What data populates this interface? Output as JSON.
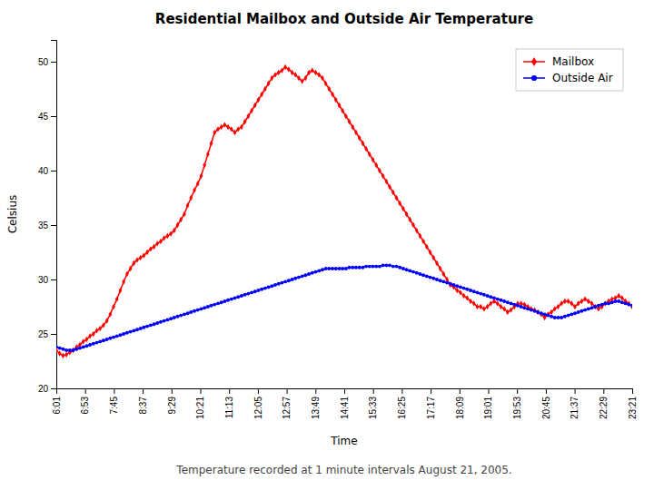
{
  "chart_data": {
    "type": "line",
    "title": "Residential Mailbox and Outside Air Temperature",
    "subtitle": "Temperature recorded at 1 minute intervals August 21, 2005.",
    "xlabel": "Time",
    "ylabel": "Celsius",
    "x": [
      0,
      1,
      2,
      3,
      4,
      5,
      6,
      7,
      8,
      9,
      10,
      11,
      12,
      13,
      14,
      15,
      16,
      17,
      18,
      19,
      20,
      21,
      22,
      23,
      24,
      25,
      26,
      27,
      28,
      29,
      30,
      31,
      32,
      33,
      34,
      35,
      36,
      37,
      38,
      39,
      40,
      41,
      42,
      43,
      44,
      45,
      46,
      47,
      48,
      49,
      50,
      51,
      52,
      53,
      54,
      55,
      56,
      57,
      58,
      59,
      60,
      61,
      62,
      63,
      64,
      65,
      66,
      67,
      68,
      69,
      70,
      71,
      72,
      73,
      74,
      75,
      76,
      77,
      78,
      79,
      80,
      81,
      82,
      83,
      84,
      85,
      86,
      87,
      88,
      89,
      90,
      91,
      92,
      93,
      94,
      95,
      96,
      97,
      98,
      99,
      100,
      101,
      102,
      103,
      104,
      105,
      106,
      107,
      108,
      109,
      110,
      111,
      112,
      113,
      114,
      115,
      116,
      117,
      118,
      119,
      120,
      121,
      122,
      123,
      124,
      125,
      126,
      127,
      128,
      129,
      130,
      131,
      132,
      133,
      134,
      135,
      136,
      137,
      138,
      139,
      140,
      141,
      142,
      143,
      144,
      145,
      146,
      147,
      148,
      149,
      150,
      151,
      152,
      153,
      154,
      155,
      156,
      157,
      158,
      159,
      160,
      161,
      162,
      163,
      164,
      165,
      166,
      167,
      168,
      169,
      170,
      171
    ],
    "xlim": [
      0,
      171
    ],
    "xticks": [
      {
        "value": 0,
        "label": "6:01"
      },
      {
        "value": 8.55,
        "label": "6:53"
      },
      {
        "value": 17.1,
        "label": "7:45"
      },
      {
        "value": 25.65,
        "label": "8:37"
      },
      {
        "value": 34.2,
        "label": "9:29"
      },
      {
        "value": 42.75,
        "label": "10:21"
      },
      {
        "value": 51.3,
        "label": "11:13"
      },
      {
        "value": 59.85,
        "label": "12:05"
      },
      {
        "value": 68.4,
        "label": "12:57"
      },
      {
        "value": 76.95,
        "label": "13:49"
      },
      {
        "value": 85.5,
        "label": "14:41"
      },
      {
        "value": 94.05,
        "label": "15:33"
      },
      {
        "value": 102.6,
        "label": "16:25"
      },
      {
        "value": 111.15,
        "label": "17:17"
      },
      {
        "value": 119.7,
        "label": "18:09"
      },
      {
        "value": 128.25,
        "label": "19:01"
      },
      {
        "value": 136.8,
        "label": "19:53"
      },
      {
        "value": 145.35,
        "label": "20:45"
      },
      {
        "value": 153.9,
        "label": "21:37"
      },
      {
        "value": 162.45,
        "label": "22:29"
      },
      {
        "value": 171,
        "label": "23:21"
      }
    ],
    "ylim": [
      20,
      52
    ],
    "yticks": [
      20,
      25,
      30,
      35,
      40,
      45,
      50
    ],
    "grid": false,
    "legend": "upper right",
    "series": [
      {
        "name": "Mailbox",
        "color": "#FF0000",
        "marker": "diamond",
        "line_style": "solid",
        "values": [
          23.5,
          23.2,
          23.0,
          23.1,
          23.3,
          23.5,
          23.8,
          24.0,
          24.3,
          24.5,
          24.8,
          25.0,
          25.3,
          25.5,
          25.8,
          26.2,
          26.8,
          27.5,
          28.2,
          29.0,
          29.8,
          30.5,
          31.0,
          31.5,
          31.8,
          32.0,
          32.2,
          32.5,
          32.8,
          33.0,
          33.3,
          33.5,
          33.8,
          34.0,
          34.2,
          34.5,
          35.0,
          35.5,
          36.0,
          36.8,
          37.5,
          38.2,
          38.8,
          39.5,
          40.5,
          41.5,
          42.5,
          43.5,
          43.8,
          44.0,
          44.2,
          44.0,
          43.8,
          43.5,
          43.8,
          44.0,
          44.5,
          45.0,
          45.5,
          46.0,
          46.5,
          47.0,
          47.5,
          48.0,
          48.5,
          48.8,
          49.0,
          49.2,
          49.5,
          49.3,
          49.0,
          48.8,
          48.5,
          48.2,
          48.5,
          49.0,
          49.2,
          49.0,
          48.8,
          48.5,
          48.0,
          47.5,
          47.0,
          46.5,
          46.0,
          45.5,
          45.0,
          44.5,
          44.0,
          43.5,
          43.0,
          42.5,
          42.0,
          41.5,
          41.0,
          40.5,
          40.0,
          39.5,
          39.0,
          38.5,
          38.0,
          37.5,
          37.0,
          36.5,
          36.0,
          35.5,
          35.0,
          34.5,
          34.0,
          33.5,
          33.0,
          32.5,
          32.0,
          31.5,
          31.0,
          30.5,
          30.0,
          29.5,
          29.3,
          29.0,
          28.8,
          28.5,
          28.3,
          28.0,
          27.8,
          27.5,
          27.5,
          27.3,
          27.5,
          27.8,
          28.0,
          27.8,
          27.5,
          27.3,
          27.0,
          27.2,
          27.5,
          27.8,
          27.8,
          27.7,
          27.5,
          27.3,
          27.2,
          27.0,
          26.8,
          26.5,
          26.8,
          27.0,
          27.3,
          27.5,
          27.8,
          28.0,
          28.0,
          27.8,
          27.5,
          27.8,
          28.0,
          28.2,
          28.0,
          27.8,
          27.5,
          27.3,
          27.5,
          27.8,
          28.0,
          28.2,
          28.3,
          28.5,
          28.3,
          28.0,
          27.8,
          27.5
        ]
      },
      {
        "name": "Outside Air",
        "color": "#0000FF",
        "marker": "circle",
        "line_style": "solid",
        "values": [
          23.8,
          23.7,
          23.6,
          23.5,
          23.5,
          23.5,
          23.6,
          23.7,
          23.8,
          23.9,
          24.0,
          24.1,
          24.2,
          24.3,
          24.4,
          24.5,
          24.6,
          24.7,
          24.8,
          24.9,
          25.0,
          25.1,
          25.2,
          25.3,
          25.4,
          25.5,
          25.6,
          25.7,
          25.8,
          25.9,
          26.0,
          26.1,
          26.2,
          26.3,
          26.4,
          26.5,
          26.6,
          26.7,
          26.8,
          26.9,
          27.0,
          27.1,
          27.2,
          27.3,
          27.4,
          27.5,
          27.6,
          27.7,
          27.8,
          27.9,
          28.0,
          28.1,
          28.2,
          28.3,
          28.4,
          28.5,
          28.6,
          28.7,
          28.8,
          28.9,
          29.0,
          29.1,
          29.2,
          29.3,
          29.4,
          29.5,
          29.6,
          29.7,
          29.8,
          29.9,
          30.0,
          30.1,
          30.2,
          30.3,
          30.4,
          30.5,
          30.6,
          30.7,
          30.8,
          30.9,
          31.0,
          31.0,
          31.0,
          31.0,
          31.0,
          31.0,
          31.0,
          31.1,
          31.1,
          31.1,
          31.1,
          31.1,
          31.2,
          31.2,
          31.2,
          31.2,
          31.2,
          31.3,
          31.3,
          31.3,
          31.2,
          31.2,
          31.1,
          31.0,
          30.9,
          30.8,
          30.7,
          30.6,
          30.5,
          30.4,
          30.3,
          30.2,
          30.1,
          30.0,
          29.9,
          29.8,
          29.7,
          29.6,
          29.5,
          29.4,
          29.3,
          29.2,
          29.1,
          29.0,
          28.9,
          28.8,
          28.7,
          28.6,
          28.5,
          28.4,
          28.3,
          28.2,
          28.1,
          28.0,
          27.9,
          27.8,
          27.7,
          27.6,
          27.5,
          27.4,
          27.3,
          27.2,
          27.1,
          27.0,
          26.9,
          26.8,
          26.7,
          26.6,
          26.5,
          26.5,
          26.5,
          26.6,
          26.7,
          26.8,
          26.9,
          27.0,
          27.1,
          27.2,
          27.3,
          27.4,
          27.5,
          27.6,
          27.7,
          27.8,
          27.8,
          27.9,
          28.0,
          28.0,
          27.9,
          27.8,
          27.7,
          27.6
        ]
      }
    ]
  }
}
